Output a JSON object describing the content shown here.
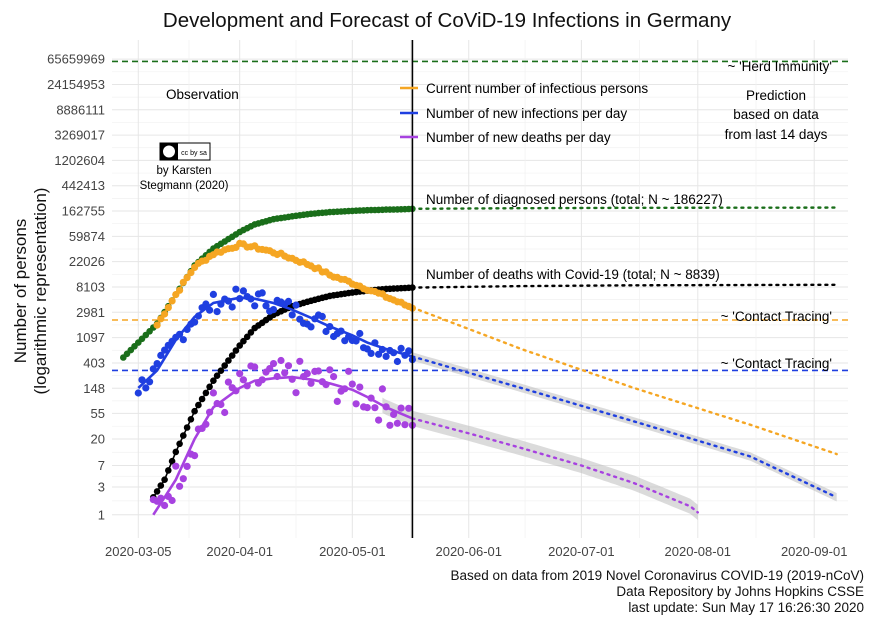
{
  "chart_data": {
    "type": "line",
    "title": "Development and Forecast of CoViD-19 Infections in Germany",
    "ylabel_line1": "Number of persons",
    "ylabel_line2": "(logarithmic representation)",
    "y_scale": "log",
    "y_ticks": [
      "1",
      "3",
      "7",
      "20",
      "55",
      "148",
      "403",
      "1097",
      "2981",
      "8103",
      "22026",
      "59874",
      "162755",
      "442413",
      "1202604",
      "3269017",
      "8886111",
      "24154953",
      "65659969"
    ],
    "x_ticks": [
      "2020-03-05",
      "2020-04-01",
      "2020-05-01",
      "2020-06-01",
      "2020-07-01",
      "2020-08-01",
      "2020-09-01"
    ],
    "x_range": [
      "2020-02-27",
      "2020-09-10"
    ],
    "y_range": [
      0.4,
      140000000
    ],
    "grid": true,
    "observation_end": "2020-05-17",
    "labels": {
      "observation": "Observation",
      "prediction_1": "Prediction",
      "prediction_2": "based on data",
      "prediction_3": "from last 14 days",
      "herd_immunity": "~ 'Herd Immunity'",
      "contact_tracing_1": "~ 'Contact Tracing'",
      "contact_tracing_2": "~ 'Contact Tracing'",
      "diagnosed_total": "Number of diagnosed persons (total; N ~ 186227)",
      "deaths_total": "Number of deaths with Covid-19 (total; N ~ 8839)"
    },
    "legend": {
      "position": "top-center",
      "entries": [
        {
          "name": "Current number of infectious persons",
          "color": "#f5a623"
        },
        {
          "name": "Number of new infections per day",
          "color": "#1f3fe0"
        },
        {
          "name": "Number of new deaths per day",
          "color": "#a742e0"
        }
      ]
    },
    "reference_lines": [
      {
        "label": "~ 'Herd Immunity'",
        "value": 60000000,
        "color": "#1a6e1a"
      },
      {
        "label": "~ 'Contact Tracing'",
        "value": 2200,
        "color": "#f5a623"
      },
      {
        "label": "~ 'Contact Tracing'",
        "value": 300,
        "color": "#1f3fe0"
      }
    ],
    "series": [
      {
        "name": "Number of diagnosed persons (total)",
        "color": "#1a6e1a",
        "observed": [
          [
            "2020-03-01",
            500
          ],
          [
            "2020-03-05",
            900
          ],
          [
            "2020-03-10",
            1900
          ],
          [
            "2020-03-15",
            6000
          ],
          [
            "2020-03-20",
            19000
          ],
          [
            "2020-03-25",
            37000
          ],
          [
            "2020-04-01",
            71000
          ],
          [
            "2020-04-05",
            96000
          ],
          [
            "2020-04-10",
            118000
          ],
          [
            "2020-04-15",
            132000
          ],
          [
            "2020-04-20",
            146000
          ],
          [
            "2020-04-25",
            156000
          ],
          [
            "2020-05-01",
            164000
          ],
          [
            "2020-05-05",
            168000
          ],
          [
            "2020-05-10",
            172000
          ],
          [
            "2020-05-15",
            175000
          ],
          [
            "2020-05-17",
            178000
          ]
        ],
        "forecast": [
          [
            "2020-05-17",
            178000
          ],
          [
            "2020-06-15",
            182000
          ],
          [
            "2020-07-15",
            185000
          ],
          [
            "2020-08-15",
            186000
          ],
          [
            "2020-09-07",
            186227
          ]
        ]
      },
      {
        "name": "Number of deaths with Covid-19 (total)",
        "color": "#000000",
        "observed": [
          [
            "2020-03-09",
            2
          ],
          [
            "2020-03-12",
            4
          ],
          [
            "2020-03-15",
            12
          ],
          [
            "2020-03-20",
            60
          ],
          [
            "2020-03-25",
            200
          ],
          [
            "2020-04-01",
            800
          ],
          [
            "2020-04-05",
            1600
          ],
          [
            "2020-04-10",
            2700
          ],
          [
            "2020-04-15",
            3800
          ],
          [
            "2020-04-20",
            4700
          ],
          [
            "2020-04-25",
            5700
          ],
          [
            "2020-05-01",
            6500
          ],
          [
            "2020-05-05",
            7000
          ],
          [
            "2020-05-10",
            7500
          ],
          [
            "2020-05-17",
            7900
          ]
        ],
        "forecast": [
          [
            "2020-05-17",
            7900
          ],
          [
            "2020-06-15",
            8400
          ],
          [
            "2020-07-15",
            8650
          ],
          [
            "2020-08-15",
            8780
          ],
          [
            "2020-09-07",
            8839
          ]
        ]
      },
      {
        "name": "Current number of infectious persons",
        "color": "#f5a623",
        "observed": [
          [
            "2020-03-10",
            1800
          ],
          [
            "2020-03-15",
            6000
          ],
          [
            "2020-03-20",
            18000
          ],
          [
            "2020-03-25",
            30000
          ],
          [
            "2020-04-01",
            43000
          ],
          [
            "2020-04-05",
            39000
          ],
          [
            "2020-04-10",
            32000
          ],
          [
            "2020-04-15",
            25000
          ],
          [
            "2020-04-20",
            19000
          ],
          [
            "2020-04-25",
            13000
          ],
          [
            "2020-05-01",
            9500
          ],
          [
            "2020-05-05",
            7500
          ],
          [
            "2020-05-10",
            5500
          ],
          [
            "2020-05-15",
            4000
          ],
          [
            "2020-05-17",
            3600
          ]
        ],
        "forecast": [
          [
            "2020-05-17",
            3600
          ],
          [
            "2020-06-15",
            700
          ],
          [
            "2020-07-15",
            150
          ],
          [
            "2020-08-15",
            35
          ],
          [
            "2020-09-07",
            11
          ]
        ]
      },
      {
        "name": "Number of new infections per day",
        "color": "#1f3fe0",
        "observed": [
          [
            "2020-03-05",
            150
          ],
          [
            "2020-03-10",
            300
          ],
          [
            "2020-03-15",
            1000
          ],
          [
            "2020-03-20",
            2500
          ],
          [
            "2020-03-25",
            4300
          ],
          [
            "2020-04-01",
            5300
          ],
          [
            "2020-04-05",
            5100
          ],
          [
            "2020-04-10",
            4300
          ],
          [
            "2020-04-15",
            3300
          ],
          [
            "2020-04-20",
            2400
          ],
          [
            "2020-04-25",
            1700
          ],
          [
            "2020-05-01",
            1200
          ],
          [
            "2020-05-05",
            900
          ],
          [
            "2020-05-10",
            700
          ],
          [
            "2020-05-17",
            520
          ]
        ],
        "forecast": [
          [
            "2020-05-17",
            520
          ],
          [
            "2020-06-15",
            150
          ],
          [
            "2020-07-15",
            40
          ],
          [
            "2020-08-15",
            10
          ],
          [
            "2020-09-07",
            2
          ]
        ]
      },
      {
        "name": "Number of new deaths per day",
        "color": "#a742e0",
        "observed": [
          [
            "2020-03-09",
            1
          ],
          [
            "2020-03-12",
            2
          ],
          [
            "2020-03-15",
            4
          ],
          [
            "2020-03-20",
            20
          ],
          [
            "2020-03-25",
            70
          ],
          [
            "2020-04-01",
            150
          ],
          [
            "2020-04-05",
            200
          ],
          [
            "2020-04-10",
            220
          ],
          [
            "2020-04-15",
            230
          ],
          [
            "2020-04-20",
            210
          ],
          [
            "2020-04-25",
            180
          ],
          [
            "2020-05-01",
            140
          ],
          [
            "2020-05-05",
            105
          ],
          [
            "2020-05-10",
            70
          ],
          [
            "2020-05-17",
            45
          ]
        ],
        "forecast": [
          [
            "2020-05-17",
            45
          ],
          [
            "2020-06-01",
            25
          ],
          [
            "2020-06-15",
            14
          ],
          [
            "2020-07-01",
            7
          ],
          [
            "2020-07-15",
            3.5
          ],
          [
            "2020-07-30",
            1.4
          ],
          [
            "2020-08-01",
            1.1
          ]
        ]
      }
    ],
    "attribution": {
      "author_line1": "by Karsten",
      "author_line2": "Stegmann (2020)",
      "license": "cc by sa"
    },
    "footer": {
      "line1": "Based on data from 2019 Novel Coronavirus COVID-19 (2019-nCoV)",
      "line2": "Data Repository by Johns Hopkins CSSE",
      "line3": "last update: Sun May 17 16:26:30 2020"
    }
  }
}
